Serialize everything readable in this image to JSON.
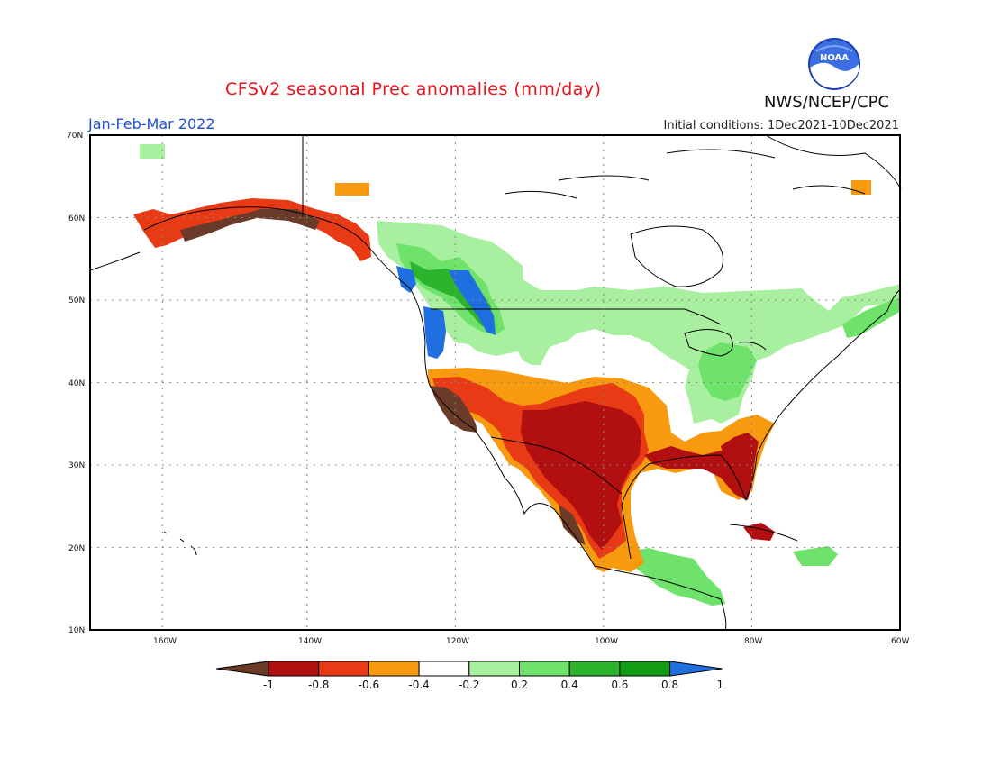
{
  "title": "CFSv2 seasonal Prec anomalies (mm/day)",
  "period": "Jan-Feb-Mar 2022",
  "initial_conditions": "Initial conditions: 1Dec2021-10Dec2021",
  "organization": "NWS/NCEP/CPC",
  "logo_text": "NOAA",
  "logo_icon": "noaa-logo-icon",
  "map": {
    "lon_range": [
      -172,
      -60
    ],
    "lat_range": [
      10,
      70
    ],
    "lat_ticks": [
      "10N",
      "20N",
      "30N",
      "40N",
      "50N",
      "60N",
      "70N"
    ],
    "lon_ticks": [
      "160W",
      "140W",
      "120W",
      "100W",
      "80W",
      "60W"
    ],
    "grid": true
  },
  "colorbar": {
    "labels": [
      "-1",
      "-0.8",
      "-0.6",
      "-0.4",
      "-0.2",
      "0.2",
      "0.4",
      "0.6",
      "0.8",
      "1"
    ],
    "colors": [
      "#6b3b2a",
      "#b21010",
      "#e83a14",
      "#f79a10",
      "#ffffff",
      "#a8f0a0",
      "#6ee26a",
      "#2db42f",
      "#129b14",
      "#1f6fe0"
    ]
  },
  "anomaly_regions": [
    {
      "name": "pacific-northwest-coast",
      "level": "1",
      "color": "#1f6fe0"
    },
    {
      "name": "northern-rockies-wet",
      "level": "0.6",
      "color": "#2db42f"
    },
    {
      "name": "great-lakes-wet",
      "level": "0.2",
      "color": "#a8f0a0"
    },
    {
      "name": "southwest-dry",
      "level": "-0.8",
      "color": "#b21010"
    },
    {
      "name": "texas-dry",
      "level": "-0.8",
      "color": "#b21010"
    },
    {
      "name": "florida-dry",
      "level": "-0.8",
      "color": "#b21010"
    },
    {
      "name": "california-coast-dry",
      "level": "-1",
      "color": "#6b3b2a"
    },
    {
      "name": "southern-alaska-dry",
      "level": "-1",
      "color": "#6b3b2a"
    }
  ]
}
